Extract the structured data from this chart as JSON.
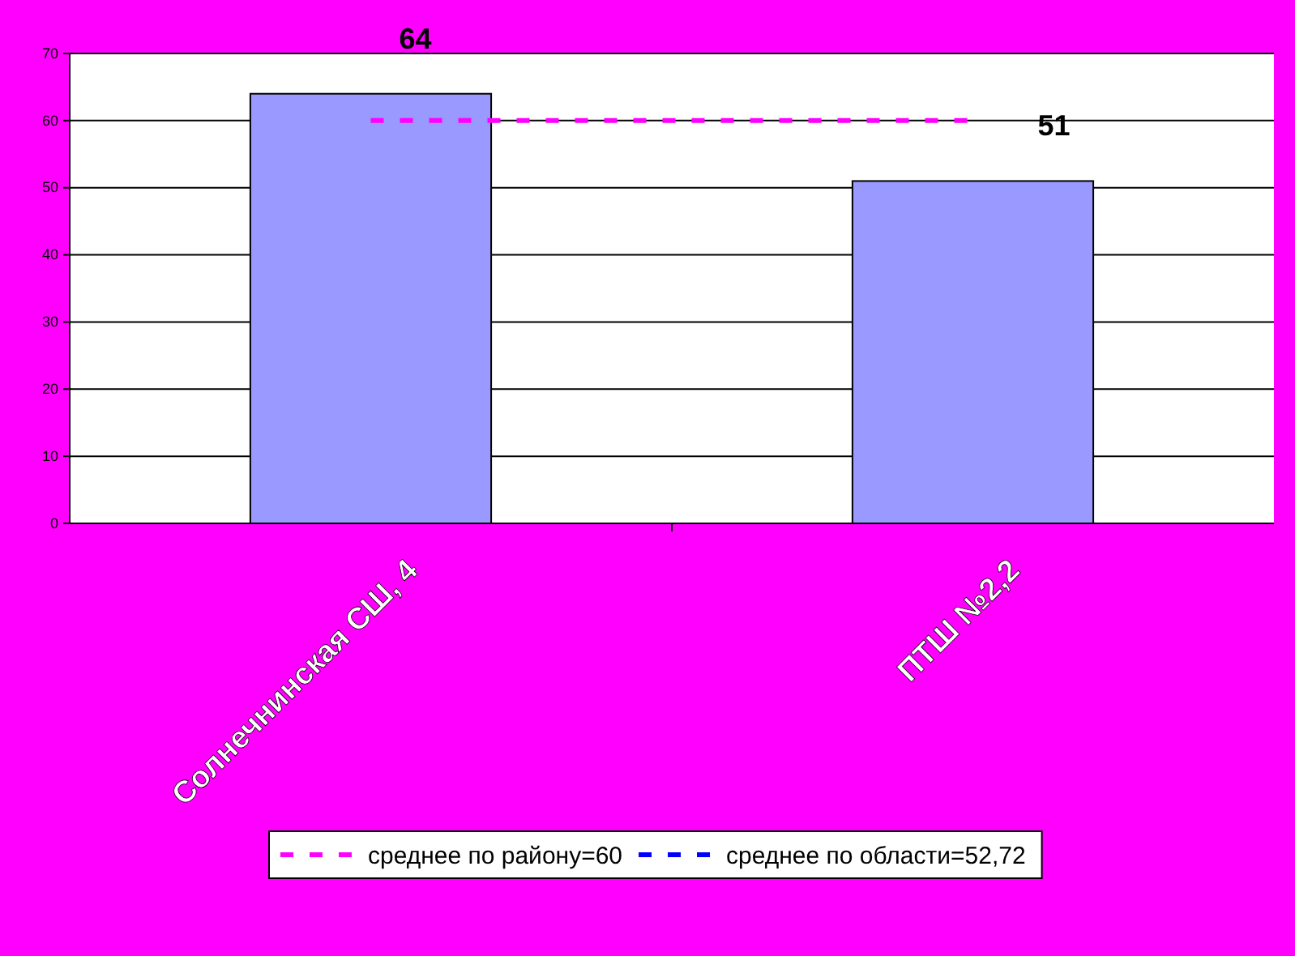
{
  "chart_data": {
    "type": "bar",
    "categories": [
      "Солнечнинская СШ, 4",
      "ПТШ №2,2"
    ],
    "series": [
      {
        "color": "#9999ff",
        "values": [
          64,
          51
        ],
        "value_labels": [
          "64",
          "51"
        ]
      },
      {
        "type": "line",
        "name": "среднее по району=60",
        "color": "#ff00ff",
        "values": [
          60,
          60
        ]
      },
      {
        "type": "line",
        "name": "среднее по области=52,72",
        "color": "#0000ff",
        "values": [
          null,
          null
        ]
      }
    ],
    "line_style": "dashed",
    "ylim": [
      0,
      70
    ],
    "yticks": [
      0,
      10,
      20,
      30,
      40,
      50,
      60,
      70
    ],
    "grid": "y",
    "legend": "bottom"
  }
}
